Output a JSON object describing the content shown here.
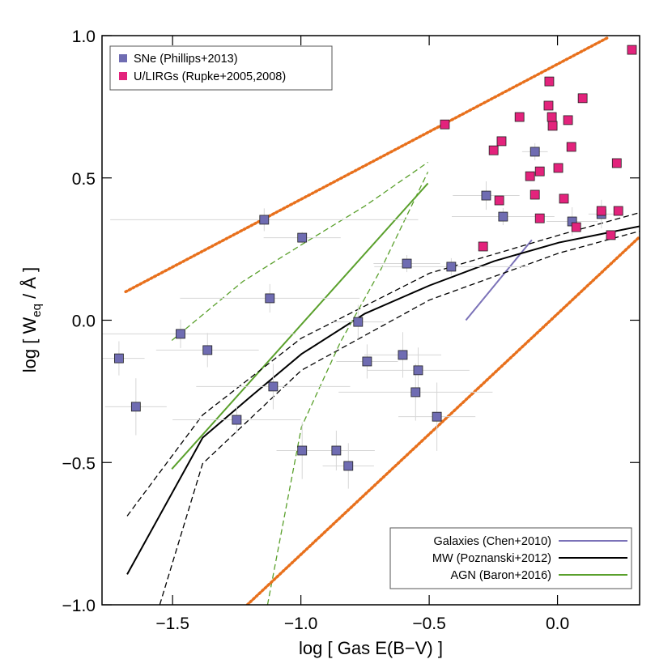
{
  "chart_data": {
    "type": "scatter",
    "x_label": "log [ Gas E(B−V) ]",
    "y_label": [
      "log [ W",
      "eq",
      " / Å ]"
    ],
    "xlim": [
      -1.775,
      0.32
    ],
    "ylim": [
      -1.0,
      1.0
    ],
    "xticks": [
      {
        "value": -1.5,
        "label": "−1.5"
      },
      {
        "value": -1.0,
        "label": "−1.0"
      },
      {
        "value": -0.5,
        "label": "−0.5"
      },
      {
        "value": 0.0,
        "label": "0.0"
      }
    ],
    "yticks": [
      {
        "value": -1.0,
        "label": "−1.0"
      },
      {
        "value": -0.5,
        "label": "−0.5"
      },
      {
        "value": 0.0,
        "label": "0.0"
      },
      {
        "value": 0.5,
        "label": "0.5"
      },
      {
        "value": 1.0,
        "label": "1.0"
      }
    ],
    "series": [
      {
        "name": "SNe (Phillips+2013)",
        "color": "#6f6cb2",
        "marker": "square",
        "legend": "upper left",
        "x": [
          -1.709,
          -1.643,
          -1.469,
          -1.364,
          -1.25,
          -1.143,
          -1.121,
          -1.108,
          -0.995,
          -0.995,
          -0.862,
          -0.815,
          -0.777,
          -0.742,
          -0.603,
          -0.587,
          -0.553,
          -0.543,
          -0.47,
          -0.414,
          -0.278,
          -0.212,
          -0.088,
          0.057,
          0.171
        ],
        "values": [
          -0.134,
          -0.304,
          -0.048,
          -0.105,
          -0.35,
          0.353,
          0.077,
          -0.233,
          0.29,
          -0.458,
          -0.458,
          -0.512,
          -0.006,
          -0.145,
          -0.122,
          0.199,
          -0.253,
          -0.176,
          -0.339,
          0.188,
          0.438,
          0.364,
          0.592,
          0.347,
          0.373
        ],
        "xerr": [
          0.1,
          0.12,
          0.45,
          0.2,
          0.25,
          0.6,
          0.35,
          0.3,
          0.15,
          0.1,
          0.15,
          0.1,
          0.1,
          0.12,
          0.15,
          0.13,
          0.3,
          0.2,
          0.15,
          0.3,
          0.13,
          0.2,
          0.05,
          0.1,
          0.05
        ],
        "yerr": [
          0.06,
          0.1,
          0.05,
          0.06,
          0.05,
          0.04,
          0.05,
          0.08,
          0.02,
          0.1,
          0.07,
          0.08,
          0.06,
          0.06,
          0.08,
          0.03,
          0.1,
          0.08,
          0.12,
          0.03,
          0.05,
          0.03,
          0.03,
          0.05,
          0.05
        ]
      },
      {
        "name": "U/LIRGs (Rupke+2005,2008)",
        "color": "#e3237c",
        "marker": "square",
        "legend": "upper left",
        "x": [
          -0.439,
          -0.249,
          -0.218,
          -0.227,
          -0.29,
          -0.148,
          -0.107,
          -0.088,
          -0.069,
          -0.069,
          -0.032,
          -0.035,
          -0.022,
          -0.019,
          0.003,
          0.025,
          0.041,
          0.054,
          0.073,
          0.098,
          0.171,
          0.208,
          0.231,
          0.237,
          0.29
        ],
        "values": [
          0.688,
          0.597,
          0.629,
          0.421,
          0.259,
          0.714,
          0.506,
          0.441,
          0.523,
          0.358,
          0.839,
          0.754,
          0.714,
          0.683,
          0.535,
          0.427,
          0.703,
          0.609,
          0.327,
          0.78,
          0.384,
          0.299,
          0.552,
          0.384,
          0.95
        ]
      },
      {
        "name": "Galaxies (Chen+2010)",
        "color": "#7b72b8",
        "style": "solid",
        "legend": "lower right",
        "x": [
          -0.357,
          -0.1
        ],
        "values": [
          0.0,
          0.282
        ]
      },
      {
        "name": "MW (Poznanski+2012)",
        "color": "#000000",
        "style": "solid",
        "legend": "lower right",
        "x": [
          -1.677,
          -1.383,
          -1.194,
          -0.998,
          -0.751,
          -0.499,
          -0.246,
          0.006,
          0.32
        ],
        "values": [
          -0.893,
          -0.413,
          -0.267,
          -0.119,
          0.023,
          0.122,
          0.208,
          0.273,
          0.33
        ]
      },
      {
        "name": "AGN (Baron+2016)",
        "color": "#5aa02c",
        "style": "solid",
        "legend": "lower right",
        "x": [
          -1.503,
          -0.505
        ],
        "values": [
          -0.523,
          0.481
        ]
      },
      {
        "color": "#000000",
        "style": "dashed",
        "x": [
          -1.677,
          -1.383,
          -0.998,
          -0.499,
          0.006,
          0.32
        ],
        "values": [
          -0.688,
          -0.333,
          -0.063,
          0.165,
          0.299,
          0.378
        ]
      },
      {
        "color": "#000000",
        "style": "dashed",
        "x": [
          -1.55,
          -1.383,
          -0.998,
          -0.499,
          0.006,
          0.32
        ],
        "values": [
          -1.0,
          -0.504,
          -0.176,
          0.071,
          0.236,
          0.313
        ]
      },
      {
        "color": "#5aa02c",
        "style": "dashed",
        "x": [
          -1.503,
          -1.225,
          -0.998,
          -0.751,
          -0.505
        ],
        "values": [
          -0.071,
          0.137,
          0.265,
          0.401,
          0.555
        ]
      },
      {
        "color": "#5aa02c",
        "style": "dashed",
        "x": [
          -1.13,
          -0.998,
          -0.846,
          -0.688,
          -0.505
        ],
        "values": [
          -1.0,
          -0.376,
          -0.077,
          0.179,
          0.521
        ]
      },
      {
        "color": "#e8701c",
        "style": "dotted",
        "x": [
          -1.683,
          0.196
        ],
        "values": [
          0.1,
          0.993
        ]
      },
      {
        "color": "#e8701c",
        "style": "dotted",
        "x": [
          -1.209,
          0.32
        ],
        "values": [
          -1.0,
          0.293
        ]
      }
    ]
  }
}
